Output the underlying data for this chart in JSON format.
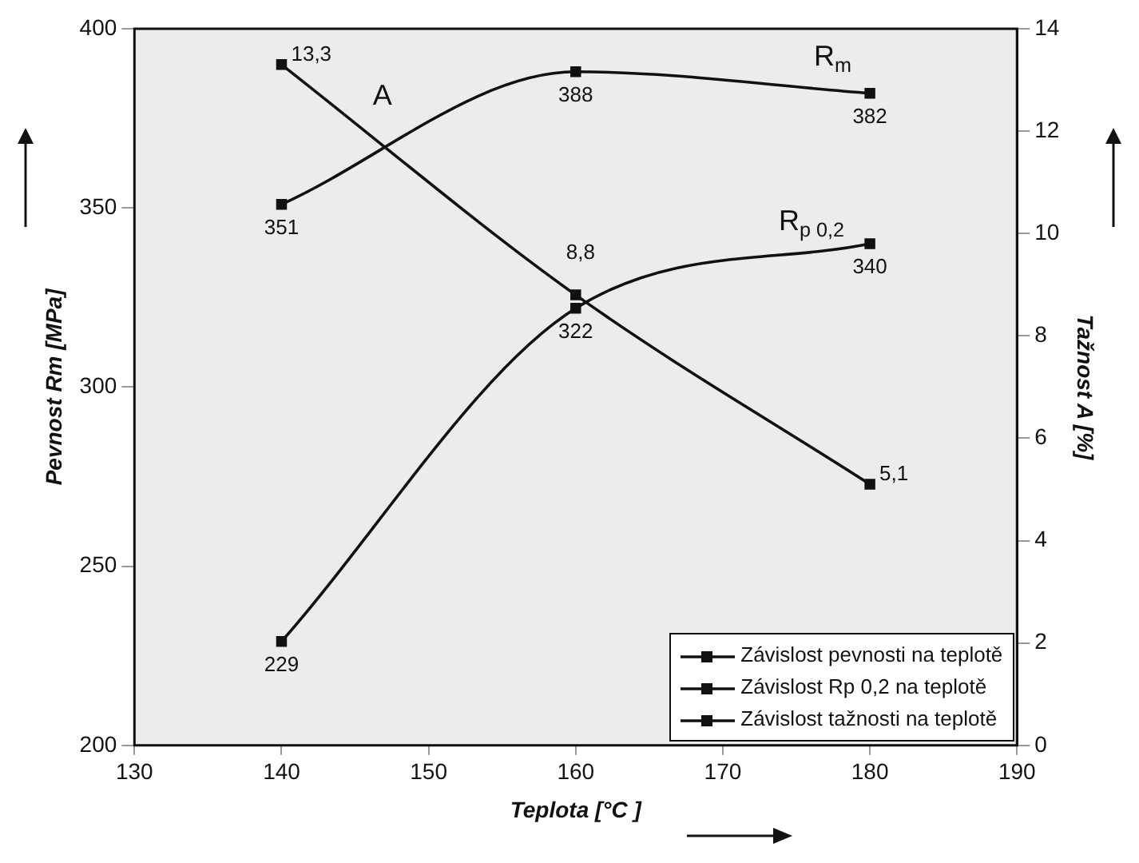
{
  "chart_data": {
    "type": "line",
    "xlabel": "Teplota [°C ]",
    "ylabel": "Pevnost Rm [MPa]",
    "y2label": "Tažnost A [%]",
    "x": [
      140,
      160,
      180
    ],
    "xlim": [
      130,
      190
    ],
    "xticks": [
      130,
      140,
      150,
      160,
      170,
      180,
      190
    ],
    "ylim": [
      200,
      400
    ],
    "yticks": [
      200,
      250,
      300,
      350,
      400
    ],
    "y2lim": [
      0,
      14
    ],
    "y2ticks": [
      0,
      2,
      4,
      6,
      8,
      10,
      12,
      14
    ],
    "series": [
      {
        "name": "Závislost pevnosti na teplotě",
        "color": "#111111",
        "values": [
          351,
          388,
          382
        ],
        "value_labels": [
          "351",
          "388",
          "382"
        ]
      },
      {
        "name": "Závislost Rp 0,2 na teplotě",
        "color": "#111111",
        "values": [
          229,
          322,
          340
        ],
        "value_labels": [
          "229",
          "322",
          "340"
        ]
      },
      {
        "name": "Závislost tažnosti na teplotě",
        "color": "#111111",
        "axis": "y2",
        "values": [
          13.3,
          8.8,
          5.1
        ],
        "value_labels": [
          "13,3",
          "8,8",
          "5,1"
        ]
      }
    ],
    "annotations": [
      "A",
      "R$_{m}$",
      "R$_{p 0,2}$"
    ],
    "marker": "square",
    "line_style": "solid",
    "legend": "bottom right"
  }
}
